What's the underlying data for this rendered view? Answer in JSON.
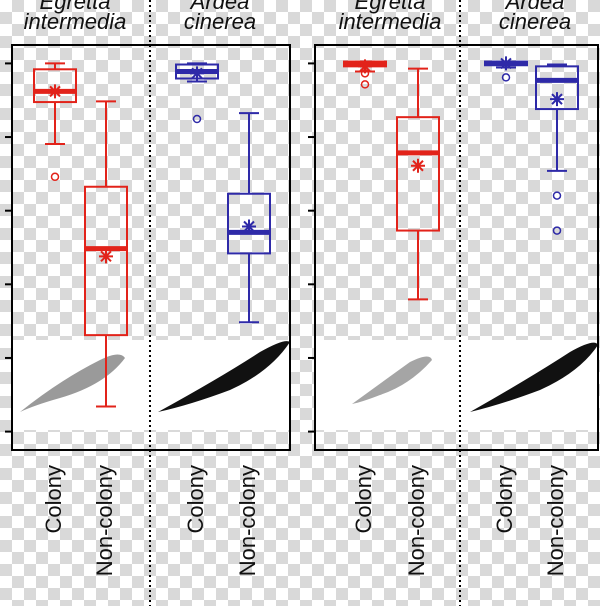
{
  "chart_data": [
    {
      "type": "box",
      "ylim": [
        -0.05,
        1.05
      ],
      "yticks": [
        0,
        0.2,
        0.4,
        0.6,
        0.8,
        1.0
      ],
      "groups": [
        {
          "label_lines": [
            "Egretta",
            "intermedia"
          ],
          "color": "#e2231a",
          "categories": [
            "Colony",
            "Non-colony"
          ],
          "boxes": [
            {
              "min": 0.781,
              "q1": 0.895,
              "median": 0.924,
              "q3": 0.984,
              "max": 1.0,
              "mean": 0.924,
              "outliers": [
                0.692
              ]
            },
            {
              "min": 0.068,
              "q1": 0.262,
              "median": 0.497,
              "q3": 0.665,
              "max": 0.897,
              "mean": 0.476,
              "outliers": []
            }
          ]
        },
        {
          "label_lines": [
            "Ardea",
            "cinerea"
          ],
          "color": "#2e2aa8",
          "categories": [
            "Colony",
            "Non-colony"
          ],
          "boxes": [
            {
              "min": 0.951,
              "q1": 0.959,
              "median": 0.978,
              "q3": 0.997,
              "max": 1.0,
              "mean": 0.973,
              "outliers": [
                0.849
              ]
            },
            {
              "min": 0.297,
              "q1": 0.484,
              "median": 0.541,
              "q3": 0.646,
              "max": 0.865,
              "mean": 0.557,
              "outliers": []
            }
          ]
        }
      ]
    },
    {
      "type": "box",
      "ylim": [
        -0.05,
        1.05
      ],
      "yticks": [
        0,
        0.2,
        0.4,
        0.6,
        0.8,
        1.0
      ],
      "groups": [
        {
          "label_lines": [
            "Egretta",
            "intermedia"
          ],
          "color": "#e2231a",
          "categories": [
            "Colony",
            "Non-colony"
          ],
          "boxes": [
            {
              "min": 0.978,
              "q1": 0.992,
              "median": 1.0,
              "q3": 1.005,
              "max": 1.005,
              "mean": 0.992,
              "outliers": [
                0.973,
                0.943
              ]
            },
            {
              "min": 0.359,
              "q1": 0.546,
              "median": 0.757,
              "q3": 0.854,
              "max": 0.986,
              "mean": 0.722,
              "outliers": []
            }
          ]
        },
        {
          "label_lines": [
            "Ardea",
            "cinerea"
          ],
          "color": "#2e2aa8",
          "categories": [
            "Colony",
            "Non-colony"
          ],
          "boxes": [
            {
              "min": 0.989,
              "q1": 0.995,
              "median": 1.0,
              "q3": 1.005,
              "max": 1.005,
              "mean": 1.0,
              "outliers": [
                0.962
              ]
            },
            {
              "min": 0.708,
              "q1": 0.876,
              "median": 0.954,
              "q3": 0.992,
              "max": 0.997,
              "mean": 0.903,
              "outliers": [
                0.641,
                0.546
              ]
            }
          ]
        }
      ]
    }
  ]
}
